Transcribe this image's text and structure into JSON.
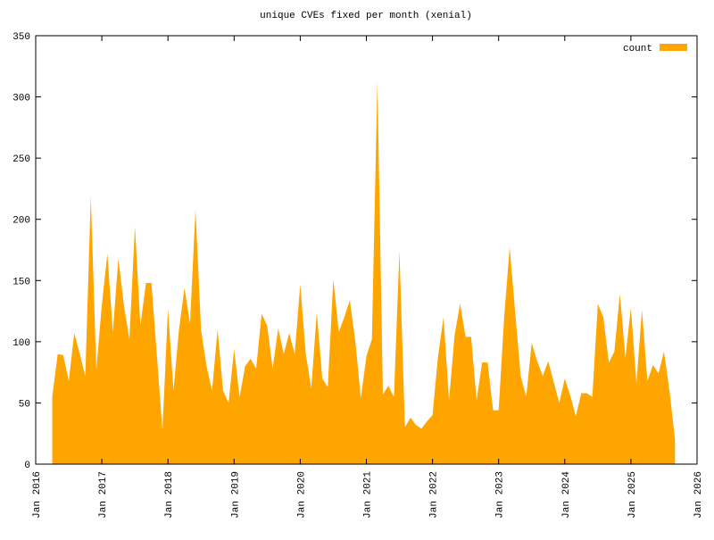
{
  "chart_data": {
    "type": "area",
    "title": "unique CVEs fixed per month (xenial)",
    "x": [
      "2016-04",
      "2016-05",
      "2016-06",
      "2016-07",
      "2016-08",
      "2016-09",
      "2016-10",
      "2016-11",
      "2016-12",
      "2017-01",
      "2017-02",
      "2017-03",
      "2017-04",
      "2017-05",
      "2017-06",
      "2017-07",
      "2017-08",
      "2017-09",
      "2017-10",
      "2017-11",
      "2017-12",
      "2018-01",
      "2018-02",
      "2018-03",
      "2018-04",
      "2018-05",
      "2018-06",
      "2018-07",
      "2018-08",
      "2018-09",
      "2018-10",
      "2018-11",
      "2018-12",
      "2019-01",
      "2019-02",
      "2019-03",
      "2019-04",
      "2019-05",
      "2019-06",
      "2019-07",
      "2019-08",
      "2019-09",
      "2019-10",
      "2019-11",
      "2019-12",
      "2020-01",
      "2020-02",
      "2020-03",
      "2020-04",
      "2020-05",
      "2020-06",
      "2020-07",
      "2020-08",
      "2020-09",
      "2020-10",
      "2020-11",
      "2020-12",
      "2021-01",
      "2021-02",
      "2021-03",
      "2021-04",
      "2021-05",
      "2021-06",
      "2021-07",
      "2021-08",
      "2021-09",
      "2021-10",
      "2021-11",
      "2021-12",
      "2022-01",
      "2022-02",
      "2022-03",
      "2022-04",
      "2022-05",
      "2022-06",
      "2022-07",
      "2022-08",
      "2022-09",
      "2022-10",
      "2022-11",
      "2022-12",
      "2023-01",
      "2023-02",
      "2023-03",
      "2023-04",
      "2023-05",
      "2023-06",
      "2023-07",
      "2023-08",
      "2023-09",
      "2023-10",
      "2023-11",
      "2023-12",
      "2024-01",
      "2024-02",
      "2024-03",
      "2024-04",
      "2024-05",
      "2024-06",
      "2024-07",
      "2024-08",
      "2024-09",
      "2024-10",
      "2024-11",
      "2024-12",
      "2025-01",
      "2025-02",
      "2025-03",
      "2025-04",
      "2025-05",
      "2025-06",
      "2025-07",
      "2025-08",
      "2025-09"
    ],
    "series": [
      {
        "name": "count",
        "color": "#ffa500",
        "values": [
          55,
          90,
          89,
          68,
          107,
          90,
          72,
          219,
          77,
          130,
          172,
          108,
          168,
          130,
          102,
          194,
          113,
          148,
          148,
          88,
          28,
          127,
          60,
          110,
          144,
          115,
          208,
          110,
          80,
          60,
          110,
          60,
          50,
          94,
          55,
          80,
          86,
          78,
          123,
          113,
          78,
          111,
          90,
          107,
          90,
          147,
          90,
          62,
          124,
          70,
          63,
          151,
          108,
          120,
          134,
          100,
          54,
          88,
          102,
          313,
          57,
          64,
          55,
          174,
          30,
          38,
          32,
          29,
          35,
          40,
          88,
          120,
          52,
          105,
          131,
          104,
          104,
          52,
          83,
          83,
          44,
          44,
          120,
          177,
          124,
          72,
          55,
          99,
          84,
          72,
          84,
          67,
          50,
          70,
          56,
          39,
          58,
          58,
          55,
          131,
          120,
          83,
          92,
          139,
          87,
          128,
          66,
          126,
          68,
          81,
          74,
          92,
          60,
          20
        ]
      }
    ],
    "xlim": [
      "2016-01",
      "2026-01"
    ],
    "xticks": [
      {
        "value": "2016-01",
        "label": "Jan 2016"
      },
      {
        "value": "2017-01",
        "label": "Jan 2017"
      },
      {
        "value": "2018-01",
        "label": "Jan 2018"
      },
      {
        "value": "2019-01",
        "label": "Jan 2019"
      },
      {
        "value": "2020-01",
        "label": "Jan 2020"
      },
      {
        "value": "2021-01",
        "label": "Jan 2021"
      },
      {
        "value": "2022-01",
        "label": "Jan 2022"
      },
      {
        "value": "2023-01",
        "label": "Jan 2023"
      },
      {
        "value": "2024-01",
        "label": "Jan 2024"
      },
      {
        "value": "2025-01",
        "label": "Jan 2025"
      },
      {
        "value": "2026-01",
        "label": "Jan 2026"
      }
    ],
    "ylim": [
      0,
      350
    ],
    "yticks": [
      0,
      50,
      100,
      150,
      200,
      250,
      300,
      350
    ],
    "legend": "top right",
    "grid": false
  }
}
